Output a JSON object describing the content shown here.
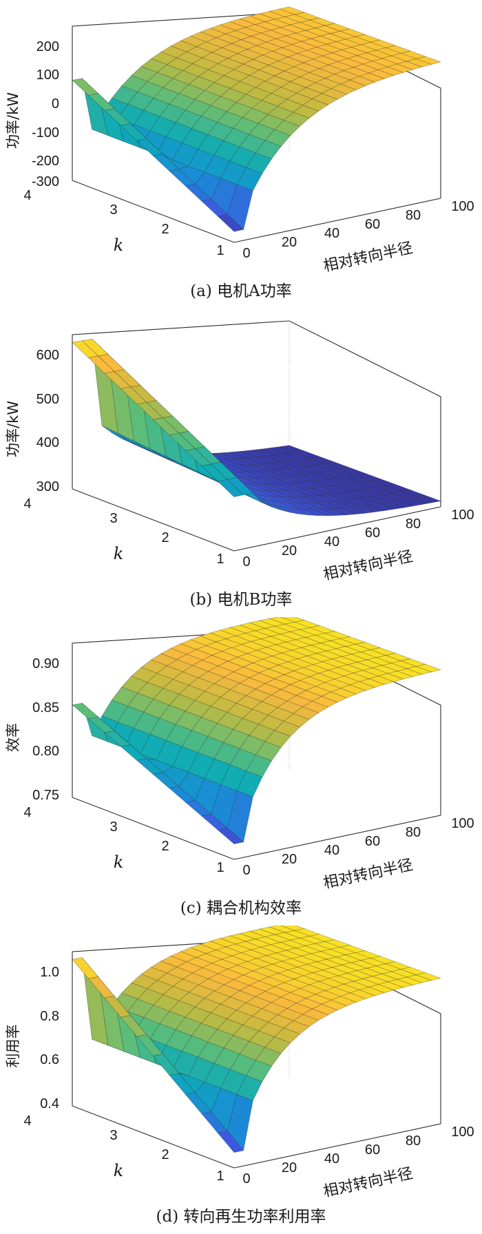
{
  "chart_data": [
    {
      "type": "surface",
      "caption": "(a)  电机A功率",
      "zlabel": "功率/kW",
      "xlabel": "相对转向半径",
      "ylabel": "k",
      "x_ticks": [
        "0",
        "20",
        "40",
        "60",
        "80",
        "100"
      ],
      "y_ticks": [
        "1",
        "2",
        "3",
        "4"
      ],
      "z_ticks": [
        "-300",
        "-200",
        "-100",
        "0",
        "100",
        "200"
      ],
      "zlim": [
        -300,
        250
      ],
      "xlim": [
        0,
        100
      ],
      "ylim": [
        1,
        4
      ],
      "surface": {
        "z_k4_r0": 80,
        "z_k4_r0_low": -280,
        "z_k1_r0": -280,
        "plateau": 220,
        "step_lower": -260,
        "step_r": 8
      },
      "colormap": "parula"
    },
    {
      "type": "surface",
      "caption": "(b)  电机B功率",
      "zlabel": "功率/kW",
      "xlabel": "相对转向半径",
      "ylabel": "k",
      "x_ticks": [
        "0",
        "20",
        "40",
        "60",
        "80",
        "100"
      ],
      "y_ticks": [
        "1",
        "2",
        "3",
        "4"
      ],
      "z_ticks": [
        "300",
        "400",
        "500",
        "600"
      ],
      "zlim": [
        290,
        610
      ],
      "xlim": [
        0,
        100
      ],
      "ylim": [
        1,
        4
      ],
      "surface": {
        "z_k4_r0": 600,
        "plateau": 300,
        "step_r": 12
      },
      "colormap": "parula"
    },
    {
      "type": "surface",
      "caption": "(c)  耦合机构效率",
      "zlabel": "效率",
      "xlabel": "相对转向半径",
      "ylabel": "k",
      "x_ticks": [
        "0",
        "20",
        "40",
        "60",
        "80",
        "100"
      ],
      "y_ticks": [
        "1",
        "2",
        "3",
        "4"
      ],
      "z_ticks": [
        "0.75",
        "0.80",
        "0.85",
        "0.90"
      ],
      "zlim": [
        0.75,
        0.93
      ],
      "xlim": [
        0,
        100
      ],
      "ylim": [
        1,
        4
      ],
      "surface": {
        "z_k4_r0": 0.86,
        "plateau": 0.92,
        "step_r": 8
      },
      "colormap": "parula"
    },
    {
      "type": "surface",
      "caption": "(d)  转向再生功率利用率",
      "zlabel": "利用率",
      "xlabel": "相对转向半径",
      "ylabel": "k",
      "x_ticks": [
        "0",
        "20",
        "40",
        "60",
        "80",
        "100"
      ],
      "y_ticks": [
        "1",
        "2",
        "3",
        "4"
      ],
      "z_ticks": [
        "0.4",
        "0.6",
        "0.8",
        "1.0"
      ],
      "zlim": [
        0.4,
        1.05
      ],
      "xlim": [
        0,
        100
      ],
      "ylim": [
        1,
        4
      ],
      "surface": {
        "z_k4_r0": 1.0,
        "plateau": 1.0,
        "step_lower": 0.45,
        "step_r": 8
      },
      "colormap": "parula"
    }
  ]
}
